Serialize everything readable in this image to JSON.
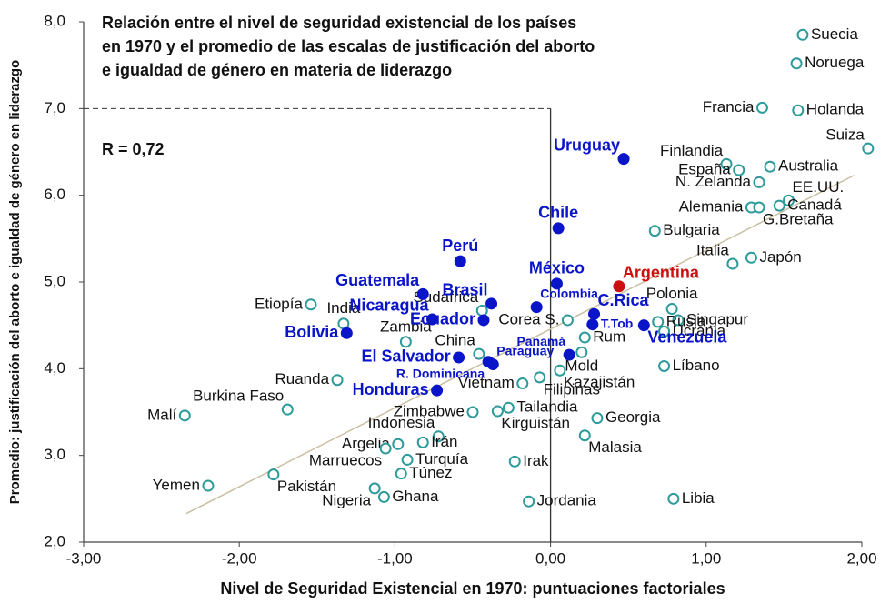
{
  "chart_data": {
    "type": "scatter",
    "title": [
      "Relación entre el nivel de seguridad existencial de los países",
      "en 1970 y el promedio de las escalas de justificación del aborto",
      "e igualdad de género en materia de liderazgo"
    ],
    "annotation": "R = 0,72",
    "x_label": "Nivel de Seguridad Existencial en 1970: puntuaciones factoriales",
    "y_label": "Promedio: justificación del aborto e igualdad de género en liderazgo",
    "xlim": [
      -3,
      2
    ],
    "ylim": [
      2,
      8
    ],
    "xticks": [
      {
        "value": -3,
        "label": "-3,00"
      },
      {
        "value": -2,
        "label": "-2,00"
      },
      {
        "value": -1,
        "label": "-1,00"
      },
      {
        "value": 0,
        "label": "0,00"
      },
      {
        "value": 1,
        "label": "1,00"
      },
      {
        "value": 2,
        "label": "2,00"
      }
    ],
    "yticks": [
      {
        "value": 2,
        "label": "2,0"
      },
      {
        "value": 3,
        "label": "3,0"
      },
      {
        "value": 4,
        "label": "4,0"
      },
      {
        "value": 5,
        "label": "5,0"
      },
      {
        "value": 6,
        "label": "6,0"
      },
      {
        "value": 7,
        "label": "7,0"
      },
      {
        "value": 8,
        "label": "8,0"
      }
    ],
    "trend_line": {
      "x": [
        -2.34,
        1.95
      ],
      "y": [
        2.33,
        6.23
      ],
      "color": "#c9c0a2"
    },
    "series": [
      {
        "color": "#2e9a9a",
        "filled": false,
        "labels": [
          "Suecia",
          "Noruega",
          "Francia",
          "Holanda",
          "Suiza",
          "Finlandia",
          "España",
          "Australia",
          "N. Zelanda",
          "EE.UU.",
          "Alemania",
          "G.Bretaña",
          "Canadá",
          "Bulgaria",
          "Italia",
          "Japón",
          "Polonia",
          "Singapur",
          "Rusia",
          "Ucrania",
          "Líbano",
          "Sudáfrica",
          "Corea S.",
          "Rum",
          "Mold",
          "Kazajistán",
          "Filipinas",
          "Vietnam",
          "Etiopía",
          "India",
          "Zambia",
          "China",
          "Ruanda",
          "Burkina Faso",
          "Malí",
          "Zimbabwe",
          "Tailandia",
          "Georgia",
          "Kirguistán",
          "Malasia",
          "Indonesia",
          "Irán",
          "Argelia",
          "Marruecos",
          "Turquía",
          "Irak",
          "Pakistán",
          "Túnez",
          "Yemen",
          "Nigeria",
          "Ghana",
          "Jordania",
          "Libia"
        ],
        "x": [
          1.62,
          1.58,
          1.36,
          1.59,
          2.04,
          1.13,
          1.21,
          1.41,
          1.34,
          1.53,
          1.29,
          1.34,
          1.47,
          0.67,
          1.17,
          1.29,
          0.78,
          0.82,
          0.69,
          0.73,
          0.73,
          -0.44,
          0.11,
          0.22,
          0.2,
          0.06,
          -0.07,
          -0.18,
          -1.54,
          -1.33,
          -0.93,
          -0.46,
          -1.37,
          -1.69,
          -2.35,
          -0.5,
          -0.27,
          0.3,
          -0.34,
          0.22,
          -0.72,
          -0.82,
          -0.98,
          -1.06,
          -0.92,
          -0.23,
          -1.78,
          -0.96,
          -2.2,
          -1.13,
          -1.07,
          -0.14,
          0.79
        ],
        "y": [
          7.85,
          7.52,
          7.01,
          6.98,
          6.54,
          6.36,
          6.29,
          6.33,
          6.15,
          5.94,
          5.86,
          5.86,
          5.88,
          5.59,
          5.21,
          5.28,
          4.69,
          4.56,
          4.54,
          4.43,
          4.03,
          4.67,
          4.56,
          4.36,
          4.19,
          3.98,
          3.9,
          3.83,
          4.74,
          4.52,
          4.31,
          4.17,
          3.87,
          3.53,
          3.46,
          3.5,
          3.55,
          3.43,
          3.51,
          3.23,
          3.22,
          3.15,
          3.13,
          3.08,
          2.95,
          2.93,
          2.78,
          2.79,
          2.65,
          2.62,
          2.52,
          2.47,
          2.5
        ]
      },
      {
        "color": "#0a14c8",
        "filled": true,
        "labels": [
          "Uruguay",
          "Chile",
          "México",
          "Perú",
          "Guatemala",
          "Brasil",
          "Nicaragua",
          "Colombia",
          "Ecuador",
          "Bolivia",
          "El Salvador",
          "Paraguay",
          "R. Dominicana",
          "Honduras",
          "C.Rica",
          "T.Tob",
          "Panamá",
          "Venezuela"
        ],
        "x": [
          0.47,
          0.05,
          0.04,
          -0.58,
          -0.82,
          -0.38,
          -0.76,
          -0.09,
          -0.43,
          -1.31,
          -0.59,
          -0.37,
          -0.4,
          -0.73,
          0.28,
          0.27,
          0.12,
          0.6
        ],
        "y": [
          6.42,
          5.62,
          4.98,
          5.24,
          4.86,
          4.75,
          4.57,
          4.71,
          4.56,
          4.41,
          4.13,
          4.05,
          4.08,
          3.75,
          4.63,
          4.51,
          4.16,
          4.5
        ]
      },
      {
        "color": "#cc1010",
        "filled": true,
        "labels": [
          "Argentina"
        ],
        "x": [
          0.44
        ],
        "y": [
          4.95
        ]
      }
    ]
  }
}
